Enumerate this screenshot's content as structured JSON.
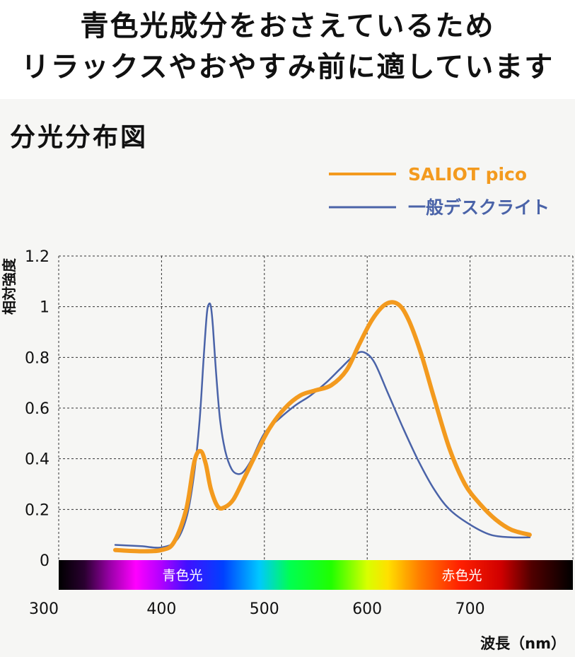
{
  "headline": {
    "line1": "青色光成分をおさえているため",
    "line2": "リラックスやおやすみ前に適しています"
  },
  "chart_data": {
    "type": "line",
    "title": "分光分布図",
    "xlabel": "波長（nm）",
    "ylabel": "相対強度",
    "xlim": [
      300,
      800
    ],
    "ylim": [
      0,
      1.2
    ],
    "x_ticks": [
      "300",
      "400",
      "500",
      "600",
      "700"
    ],
    "y_ticks": [
      "0",
      "0.2",
      "0.4",
      "0.6",
      "0.8",
      "1",
      "1.2"
    ],
    "grid": true,
    "legend_position": "top-right",
    "spectrum_band_labels": {
      "blue": "青色光",
      "red": "赤色光"
    },
    "series": [
      {
        "name": "SALIOT pico",
        "color": "#f39a1e",
        "x": [
          355,
          380,
          400,
          412,
          424,
          432,
          438,
          443,
          448,
          455,
          462,
          470,
          480,
          492,
          505,
          520,
          535,
          550,
          565,
          580,
          592,
          605,
          618,
          630,
          640,
          652,
          665,
          680,
          695,
          710,
          725,
          740,
          758
        ],
        "y": [
          0.04,
          0.035,
          0.04,
          0.07,
          0.2,
          0.39,
          0.43,
          0.38,
          0.28,
          0.21,
          0.21,
          0.24,
          0.32,
          0.42,
          0.52,
          0.6,
          0.65,
          0.67,
          0.69,
          0.75,
          0.85,
          0.95,
          1.01,
          1.01,
          0.95,
          0.82,
          0.64,
          0.44,
          0.3,
          0.22,
          0.16,
          0.12,
          0.1
        ]
      },
      {
        "name": "一般デスクライト",
        "color": "#4a63a8",
        "x": [
          355,
          380,
          400,
          415,
          425,
          432,
          437,
          441,
          444,
          446,
          448,
          450,
          453,
          457,
          462,
          468,
          474,
          480,
          488,
          500,
          515,
          530,
          545,
          560,
          575,
          588,
          597,
          607,
          620,
          635,
          650,
          665,
          680,
          700,
          720,
          740,
          758
        ],
        "y": [
          0.06,
          0.055,
          0.05,
          0.08,
          0.18,
          0.35,
          0.55,
          0.8,
          0.97,
          1.01,
          1.0,
          0.92,
          0.74,
          0.55,
          0.43,
          0.36,
          0.34,
          0.35,
          0.4,
          0.5,
          0.56,
          0.61,
          0.65,
          0.7,
          0.76,
          0.81,
          0.82,
          0.78,
          0.66,
          0.52,
          0.39,
          0.28,
          0.2,
          0.14,
          0.1,
          0.09,
          0.09
        ]
      }
    ]
  }
}
